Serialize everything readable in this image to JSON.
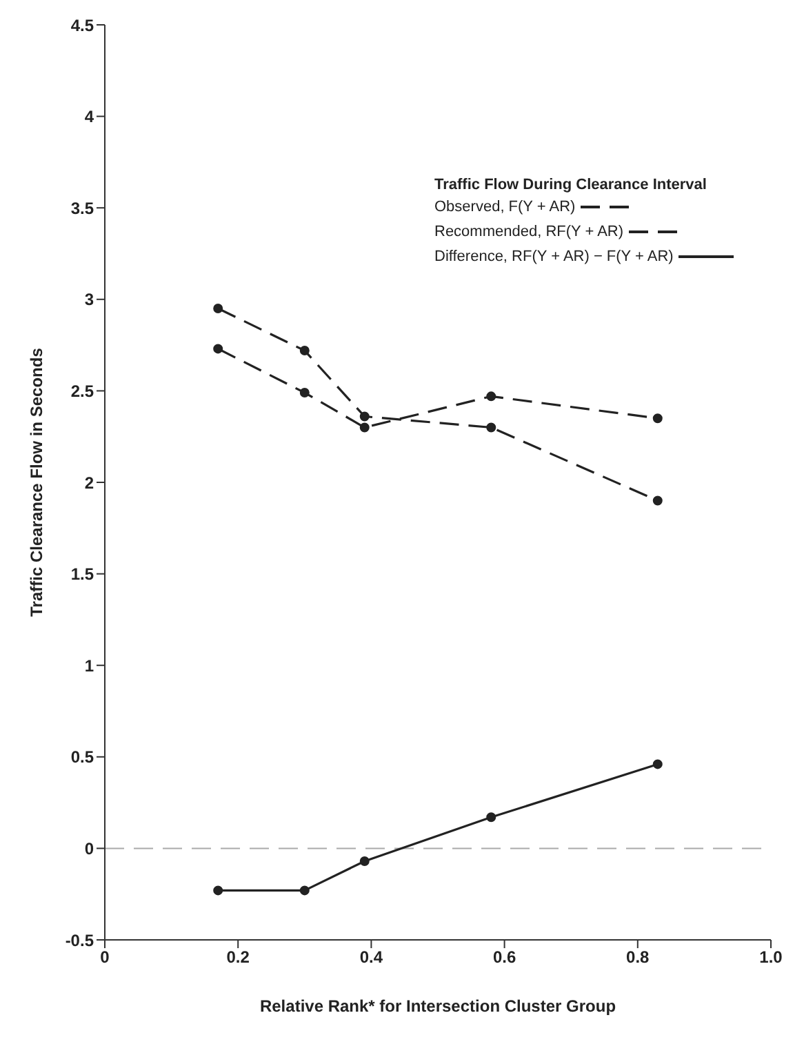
{
  "chart_data": {
    "type": "line",
    "xlabel": "Relative Rank* for Intersection Cluster Group",
    "ylabel": "Traffic Clearance Flow in Seconds",
    "legend_title": "Traffic Flow During Clearance Interval",
    "x": [
      0.17,
      0.3,
      0.39,
      0.58,
      0.83
    ],
    "series": [
      {
        "name": "Observed, F(Y + AR)",
        "color": "#222222",
        "line_style": "dashed",
        "values": [
          2.95,
          2.72,
          2.36,
          2.3,
          1.9
        ]
      },
      {
        "name": "Recommended, RF(Y + AR)",
        "color": "#222222",
        "line_style": "dashed",
        "values": [
          2.73,
          2.49,
          2.3,
          2.47,
          2.35
        ]
      },
      {
        "name": "Difference, RF(Y + AR) − F(Y + AR)",
        "color": "#222222",
        "line_style": "solid",
        "values": [
          -0.23,
          -0.23,
          -0.07,
          0.17,
          0.46
        ]
      }
    ],
    "xlim": [
      0,
      1
    ],
    "xticks": [
      0,
      0.2,
      0.4,
      0.6,
      0.8,
      {
        "value": 1,
        "label": "1.0"
      }
    ],
    "ylim": [
      -0.5,
      4.5
    ],
    "yticks": [
      -0.5,
      0,
      0.5,
      1,
      1.5,
      2,
      2.5,
      3,
      3.5,
      4,
      4.5
    ],
    "ref_lines": [
      {
        "axis": "y",
        "value": 0,
        "color": "#aaaaaa",
        "line_style": "dashed"
      }
    ],
    "marker": "circle",
    "grid": false,
    "legend": "top right"
  }
}
